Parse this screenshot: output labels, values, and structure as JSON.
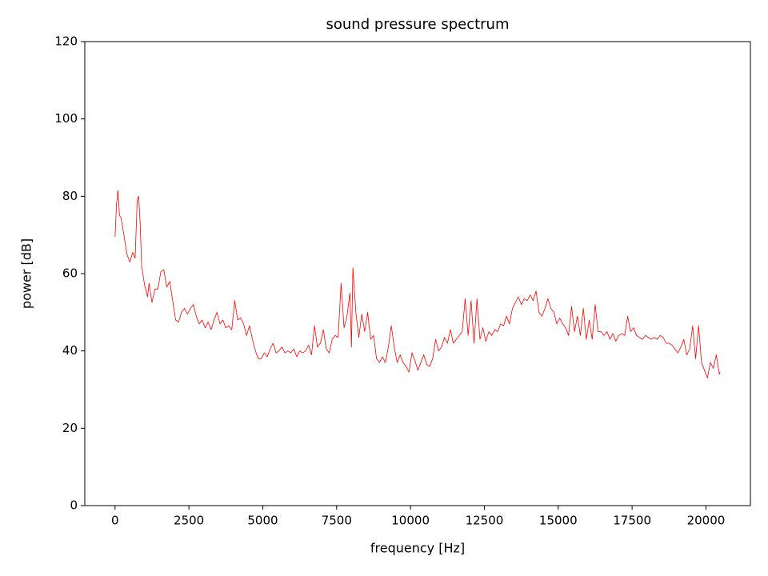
{
  "chart_data": {
    "type": "line",
    "title": "sound pressure spectrum",
    "xlabel": "frequency [Hz]",
    "ylabel": "power [dB]",
    "color": "#ff0000",
    "grid": false,
    "xlim": [
      -1024,
      21504
    ],
    "ylim": [
      0,
      120
    ],
    "xticks": [
      0,
      2500,
      5000,
      7500,
      10000,
      12500,
      15000,
      17500,
      20000
    ],
    "yticks": [
      0,
      20,
      40,
      60,
      80,
      100,
      120
    ],
    "x": [
      0,
      50,
      100,
      150,
      200,
      300,
      400,
      500,
      600,
      680,
      750,
      800,
      850,
      900,
      1000,
      1100,
      1150,
      1250,
      1350,
      1450,
      1550,
      1650,
      1750,
      1850,
      1950,
      2050,
      2150,
      2250,
      2350,
      2450,
      2550,
      2650,
      2750,
      2850,
      2950,
      3050,
      3150,
      3250,
      3350,
      3450,
      3550,
      3650,
      3750,
      3850,
      3950,
      4050,
      4150,
      4250,
      4350,
      4450,
      4550,
      4650,
      4750,
      4850,
      4950,
      5050,
      5150,
      5250,
      5350,
      5450,
      5550,
      5650,
      5750,
      5850,
      5950,
      6050,
      6150,
      6250,
      6350,
      6450,
      6550,
      6650,
      6750,
      6850,
      6950,
      7050,
      7150,
      7250,
      7350,
      7450,
      7550,
      7650,
      7750,
      7850,
      7950,
      8000,
      8050,
      8150,
      8250,
      8350,
      8450,
      8550,
      8650,
      8750,
      8850,
      8950,
      9050,
      9150,
      9250,
      9350,
      9450,
      9550,
      9650,
      9750,
      9850,
      9950,
      10050,
      10150,
      10250,
      10350,
      10450,
      10550,
      10650,
      10750,
      10850,
      10950,
      11050,
      11150,
      11250,
      11350,
      11450,
      11550,
      11650,
      11750,
      11850,
      11950,
      12050,
      12150,
      12250,
      12350,
      12450,
      12550,
      12650,
      12750,
      12850,
      12950,
      13050,
      13150,
      13250,
      13350,
      13450,
      13550,
      13650,
      13750,
      13850,
      13950,
      14050,
      14150,
      14250,
      14350,
      14450,
      14550,
      14650,
      14750,
      14850,
      14950,
      15050,
      15150,
      15250,
      15350,
      15450,
      15550,
      15650,
      15750,
      15850,
      15950,
      16050,
      16150,
      16250,
      16350,
      16450,
      16550,
      16650,
      16750,
      16850,
      16950,
      17050,
      17150,
      17250,
      17350,
      17450,
      17550,
      17650,
      17750,
      17850,
      17950,
      18050,
      18150,
      18250,
      18350,
      18450,
      18550,
      18650,
      18750,
      18850,
      18950,
      19050,
      19150,
      19250,
      19350,
      19450,
      19550,
      19650,
      19750,
      19850,
      19950,
      20050,
      20150,
      20250,
      20350,
      20450,
      20480
    ],
    "values": [
      69.5,
      78,
      81.5,
      75,
      74.5,
      70,
      65,
      63,
      65.5,
      64,
      79,
      80,
      73,
      62,
      57,
      54,
      57.5,
      52.5,
      56,
      56,
      60.5,
      61,
      56.5,
      58,
      53,
      48,
      47.5,
      50,
      51,
      49.5,
      51,
      52,
      49,
      47,
      48,
      46,
      47.5,
      45.5,
      48,
      50,
      47,
      48,
      46,
      46.5,
      45.5,
      53,
      48,
      48.5,
      47,
      44,
      46.5,
      43,
      40,
      38,
      38,
      39.5,
      38.5,
      40.5,
      42,
      39.5,
      40,
      41,
      39.5,
      40,
      39.5,
      40.5,
      38.5,
      40,
      39.5,
      40,
      41.5,
      39,
      46.5,
      41,
      42,
      45.5,
      40.5,
      39.5,
      43,
      44,
      43.5,
      57.5,
      46,
      49,
      55,
      41,
      61.5,
      50,
      43.5,
      49.5,
      45,
      50,
      43,
      44,
      38,
      37,
      38.5,
      37,
      41,
      46.5,
      41,
      37,
      39,
      37,
      36,
      34.5,
      39.5,
      37.5,
      35,
      37,
      39,
      36.5,
      36,
      38,
      43,
      40,
      41,
      43.5,
      42,
      45.5,
      42,
      43,
      44,
      45,
      53.5,
      44,
      53,
      42,
      53.5,
      43,
      46,
      42.5,
      45,
      44,
      45.5,
      45,
      47,
      46.5,
      49,
      47,
      51,
      52.5,
      54,
      52,
      53.5,
      53,
      54.5,
      53,
      55.5,
      50,
      49,
      51,
      53.5,
      51,
      50,
      47,
      48.5,
      47,
      46,
      44,
      51.5,
      45,
      49,
      44,
      51,
      43,
      48,
      43,
      52,
      45,
      45,
      44,
      45,
      43,
      44.5,
      42.5,
      44,
      44.5,
      44,
      49,
      45,
      46,
      44,
      43.5,
      43,
      44,
      43.5,
      43,
      43.5,
      43,
      44,
      43.5,
      42,
      42,
      41.5,
      40.5,
      39.5,
      41,
      43,
      39,
      40.5,
      46.5,
      38,
      46.5,
      37,
      35,
      33,
      37,
      35.5,
      39,
      34,
      34.5
    ]
  }
}
